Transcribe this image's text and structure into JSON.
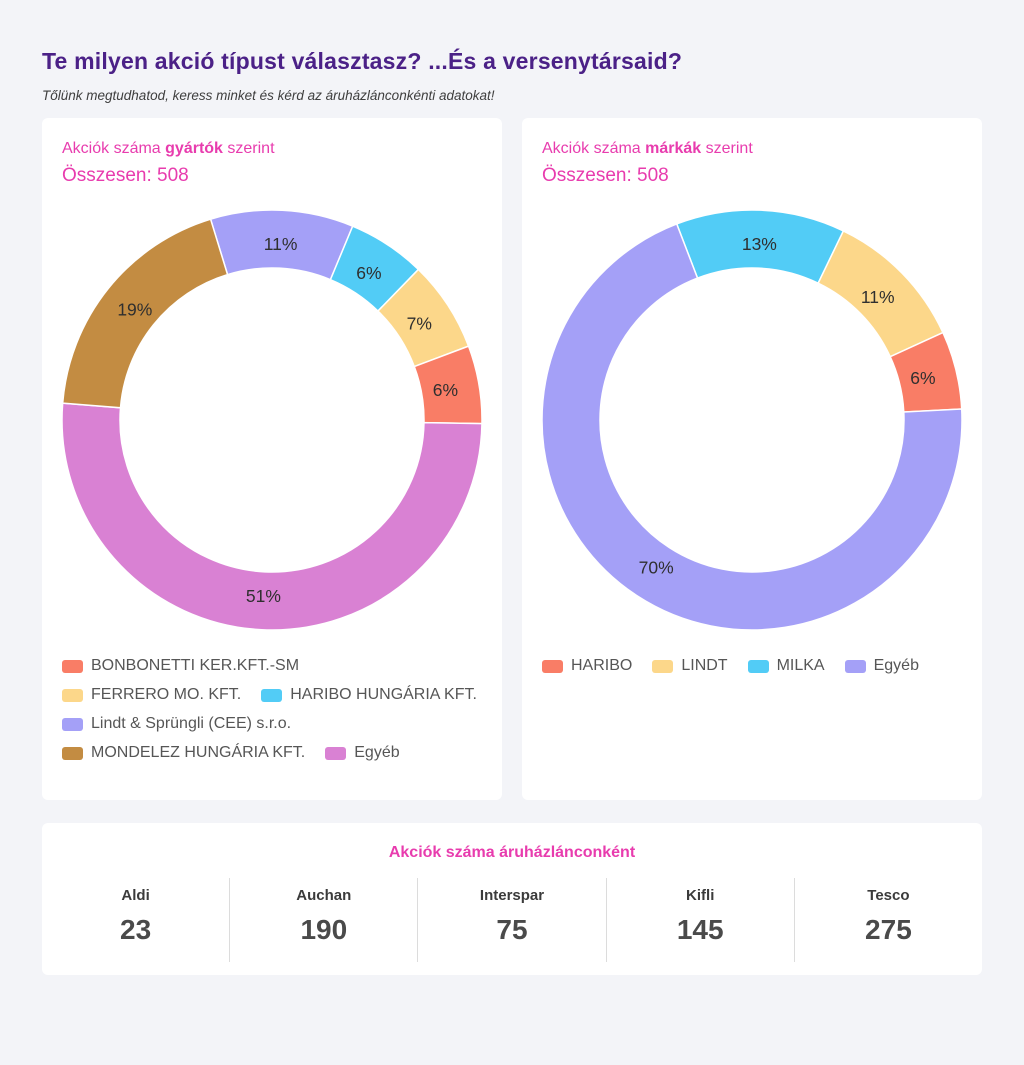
{
  "page": {
    "title": "Te milyen akció típust választasz? ...És a versenytársaid?",
    "subtitle": "Tőlünk megtudhatod, keress minket és kérd az áruházlánconkénti adatokat!"
  },
  "colors": {
    "background": "#f3f4f8",
    "card": "#ffffff",
    "title_purple": "#4b2187",
    "accent_pink": "#e83cae",
    "legend_text": "#565656",
    "salmon": "#f97d66",
    "yellow": "#fcd78a",
    "cyan": "#52ccf6",
    "periwinkle": "#a4a0f7",
    "brown": "#c38c42",
    "orchid": "#d981d3"
  },
  "chart_data": [
    {
      "type": "pie",
      "subtype": "donut",
      "title_prefix": "Akciók száma ",
      "title_bold": "gyártók",
      "title_suffix": " szerint",
      "total_label": "Összesen: 508",
      "total": 508,
      "start_angle_deg": -17,
      "legend_position": "bottom",
      "segments": [
        {
          "label": "Lindt & Sprüngli (CEE) s.r.o.",
          "pct": 11,
          "color": "#a4a0f7"
        },
        {
          "label": "HARIBO HUNGÁRIA KFT.",
          "pct": 6,
          "color": "#52ccf6"
        },
        {
          "label": "FERRERO MO. KFT.",
          "pct": 7,
          "color": "#fcd78a"
        },
        {
          "label": "BONBONETTI KER.KFT.-SM",
          "pct": 6,
          "color": "#f97d66"
        },
        {
          "label": "Egyéb",
          "pct": 51,
          "color": "#d981d3"
        },
        {
          "label": "MONDELEZ HUNGÁRIA KFT.",
          "pct": 19,
          "color": "#c38c42"
        }
      ],
      "legend_rows": [
        [
          {
            "label": "BONBONETTI KER.KFT.-SM",
            "color": "#f97d66"
          }
        ],
        [
          {
            "label": "FERRERO MO. KFT.",
            "color": "#fcd78a"
          },
          {
            "label": "HARIBO HUNGÁRIA KFT.",
            "color": "#52ccf6"
          }
        ],
        [
          {
            "label": "Lindt & Sprüngli (CEE) s.r.o.",
            "color": "#a4a0f7"
          }
        ],
        [
          {
            "label": "MONDELEZ HUNGÁRIA KFT.",
            "color": "#c38c42"
          },
          {
            "label": "Egyéb",
            "color": "#d981d3"
          }
        ]
      ]
    },
    {
      "type": "pie",
      "subtype": "donut",
      "title_prefix": "Akciók száma ",
      "title_bold": "márkák",
      "title_suffix": " szerint",
      "total_label": "Összesen: 508",
      "total": 508,
      "start_angle_deg": -21,
      "legend_position": "bottom",
      "segments": [
        {
          "label": "MILKA",
          "pct": 13,
          "color": "#52ccf6"
        },
        {
          "label": "LINDT",
          "pct": 11,
          "color": "#fcd78a"
        },
        {
          "label": "HARIBO",
          "pct": 6,
          "color": "#f97d66"
        },
        {
          "label": "Egyéb",
          "pct": 70,
          "color": "#a4a0f7"
        }
      ],
      "legend_rows": [
        [
          {
            "label": "HARIBO",
            "color": "#f97d66"
          },
          {
            "label": "LINDT",
            "color": "#fcd78a"
          },
          {
            "label": "MILKA",
            "color": "#52ccf6"
          },
          {
            "label": "Egyéb",
            "color": "#a4a0f7"
          }
        ]
      ]
    },
    {
      "type": "table",
      "title": "Akciók száma áruházlánconként",
      "columns": [
        "Aldi",
        "Auchan",
        "Interspar",
        "Kifli",
        "Tesco"
      ],
      "values": [
        23,
        190,
        75,
        145,
        275
      ]
    }
  ],
  "stats": {
    "title": "Akciók száma áruházlánconként",
    "items": [
      {
        "name": "Aldi",
        "value": "23"
      },
      {
        "name": "Auchan",
        "value": "190"
      },
      {
        "name": "Interspar",
        "value": "75"
      },
      {
        "name": "Kifli",
        "value": "145"
      },
      {
        "name": "Tesco",
        "value": "275"
      }
    ]
  }
}
